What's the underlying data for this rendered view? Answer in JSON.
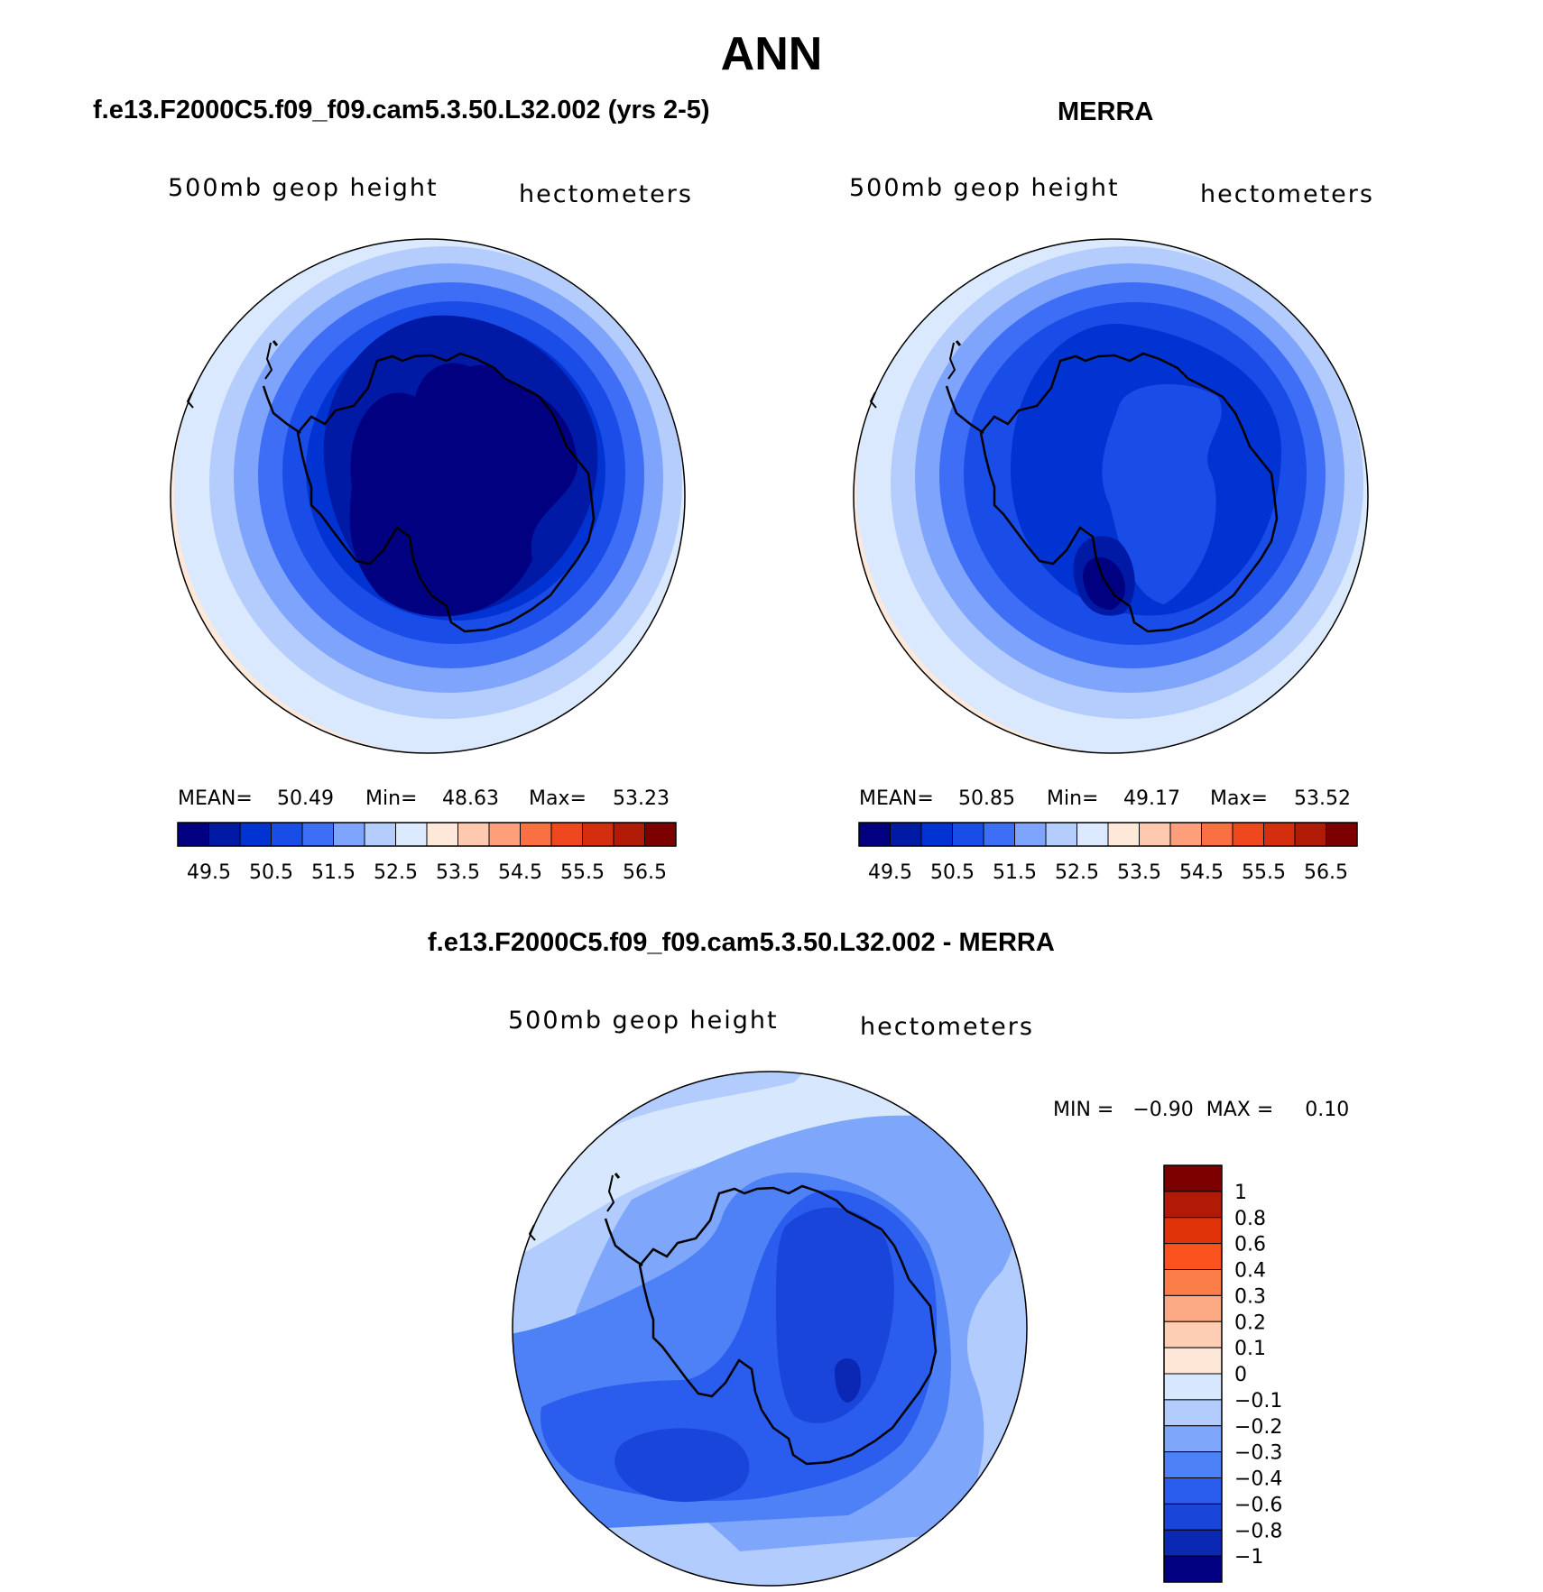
{
  "title": "ANN",
  "panels": [
    {
      "id": "model",
      "title": "f.e13.F2000C5.f09_f09.cam5.3.50.L32.002 (yrs 2-5)",
      "variable": "500mb geop height",
      "units": "hectometers",
      "stats": {
        "mean_label": "MEAN=",
        "mean": "50.49",
        "min_label": "Min=",
        "min": "48.63",
        "max_label": "Max=",
        "max": "53.23"
      }
    },
    {
      "id": "obs",
      "title": "MERRA",
      "variable": "500mb geop height",
      "units": "hectometers",
      "stats": {
        "mean_label": "MEAN=",
        "mean": "50.85",
        "min_label": "Min=",
        "min": "49.17",
        "max_label": "Max=",
        "max": "53.52"
      }
    },
    {
      "id": "diff",
      "title": "f.e13.F2000C5.f09_f09.cam5.3.50.L32.002 - MERRA",
      "variable": "500mb geop height",
      "units": "hectometers",
      "stats_text": "MIN =   −0.90  MAX =     0.10"
    }
  ],
  "colorbar_top": {
    "colors": [
      "#000080",
      "#001aa6",
      "#0033d1",
      "#1a4de8",
      "#3d6ef5",
      "#7ea5fb",
      "#b5cdfd",
      "#dbe9fe",
      "#fee8d9",
      "#fdcab0",
      "#fc9f7a",
      "#fa7043",
      "#f0481e",
      "#d52e0e",
      "#b01a06",
      "#7d0000"
    ],
    "tick_labels": [
      "49.5",
      "50.5",
      "51.5",
      "52.5",
      "53.5",
      "54.5",
      "55.5",
      "56.5"
    ]
  },
  "colorbar_diff": {
    "colors": [
      "#7d0000",
      "#b01a06",
      "#e0330a",
      "#fc5220",
      "#fb7d48",
      "#fcaa84",
      "#fdcdb4",
      "#fde8d8",
      "#d6e7fe",
      "#b2cdfd",
      "#7ea6fb",
      "#4e80f6",
      "#2a5cee",
      "#1a45db",
      "#0b28b5",
      "#000080"
    ],
    "tick_labels": [
      "1",
      "0.8",
      "0.6",
      "0.4",
      "0.3",
      "0.2",
      "0.1",
      "0",
      "−0.1",
      "−0.2",
      "−0.3",
      "−0.4",
      "−0.6",
      "−0.8",
      "−1"
    ]
  },
  "chart_data": [
    {
      "type": "heatmap",
      "title": "f.e13.F2000C5.f09_f09.cam5.3.50.L32.002 (yrs 2-5)",
      "subtitle": "500mb geop height",
      "units": "hectometers",
      "projection": "polar-stereographic-south",
      "mean": 50.49,
      "min": 48.63,
      "max": 53.23,
      "contour_levels": [
        49,
        49.5,
        50,
        50.5,
        51,
        51.5,
        52,
        52.5,
        53,
        53.5,
        54,
        54.5,
        55,
        55.5,
        56,
        56.5
      ]
    },
    {
      "type": "heatmap",
      "title": "MERRA",
      "subtitle": "500mb geop height",
      "units": "hectometers",
      "projection": "polar-stereographic-south",
      "mean": 50.85,
      "min": 49.17,
      "max": 53.52,
      "contour_levels": [
        49,
        49.5,
        50,
        50.5,
        51,
        51.5,
        52,
        52.5,
        53,
        53.5,
        54,
        54.5,
        55,
        55.5,
        56,
        56.5
      ]
    },
    {
      "type": "heatmap",
      "title": "f.e13.F2000C5.f09_f09.cam5.3.50.L32.002 - MERRA",
      "subtitle": "500mb geop height",
      "units": "hectometers",
      "projection": "polar-stereographic-south",
      "min": -0.9,
      "max": 0.1,
      "contour_levels": [
        -1,
        -0.8,
        -0.6,
        -0.4,
        -0.3,
        -0.2,
        -0.1,
        0,
        0.1,
        0.2,
        0.3,
        0.4,
        0.6,
        0.8,
        1
      ]
    }
  ]
}
